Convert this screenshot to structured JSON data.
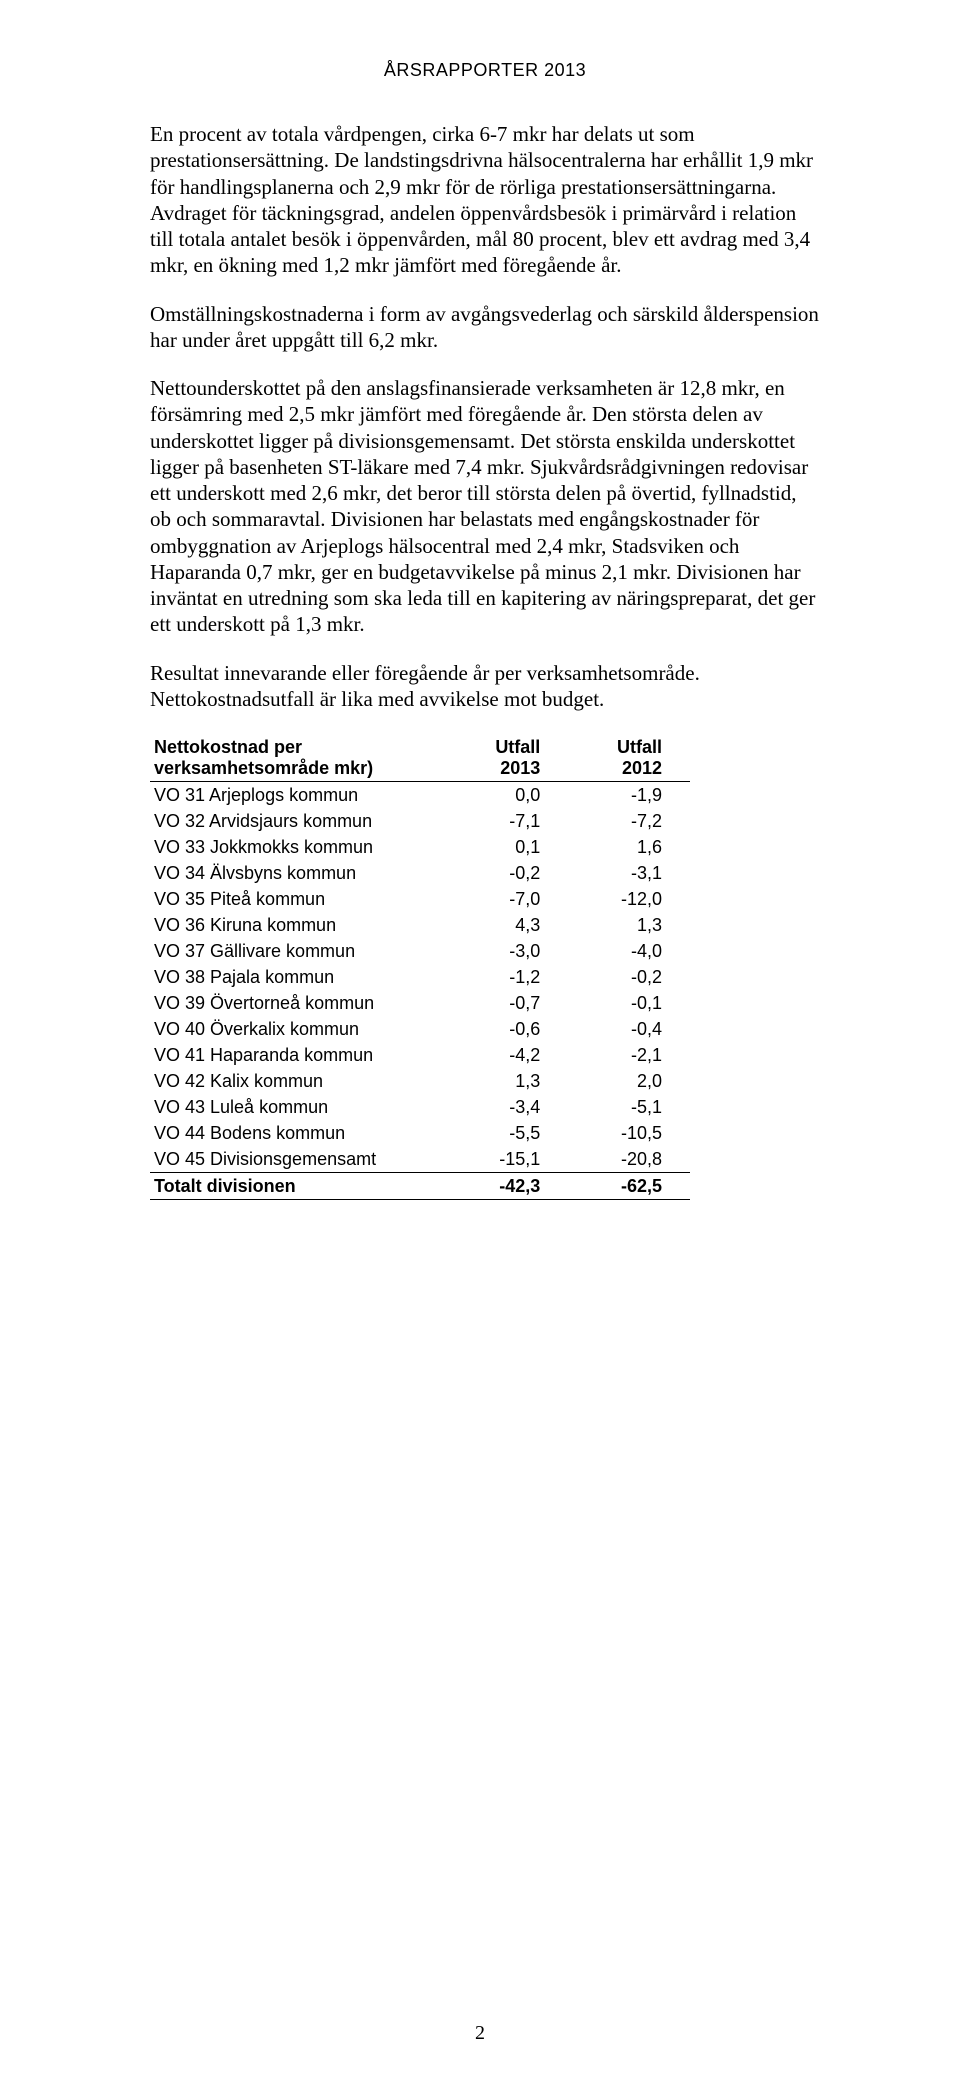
{
  "header": "ÅRSRAPPORTER 2013",
  "paragraphs": [
    "En procent av totala vårdpengen, cirka 6-7 mkr har delats ut som prestationsersättning. De landstingsdrivna hälsocentralerna har erhållit 1,9 mkr för handlingsplanerna och 2,9 mkr för de rörliga prestationsersättningarna. Avdraget för täckningsgrad, andelen öppenvårdsbesök i primärvård i relation till totala antalet besök i öppenvården, mål 80 procent, blev ett avdrag med 3,4 mkr, en ökning med 1,2 mkr jämfört med föregående år.",
    "Omställningskostnaderna i form av avgångsvederlag och särskild ålderspension har under året uppgått till 6,2 mkr.",
    "Nettounderskottet på den anslagsfinansierade verksamheten är 12,8 mkr, en försämring med 2,5 mkr jämfört med föregående år. Den största delen av underskottet ligger på divisionsgemensamt. Det största enskilda underskottet ligger på basenheten ST-läkare med 7,4 mkr. Sjukvårdsrådgivningen redovisar ett underskott med 2,6 mkr, det beror till största delen på övertid, fyllnadstid, ob och sommaravtal. Divisionen har belastats med engångskostnader för ombyggnation av Arjeplogs hälsocentral med 2,4 mkr, Stadsviken och Haparanda 0,7 mkr, ger en budgetavvikelse på minus 2,1 mkr. Divisionen har inväntat en utredning som ska leda till en kapitering av näringspreparat, det ger ett underskott på 1,3 mkr.",
    "Resultat innevarande eller föregående år per verksamhetsområde. Nettokostnadsutfall är lika med avvikelse mot budget."
  ],
  "table": {
    "title_col": "Nettokostnad per verksamhetsområde mkr)",
    "col2_line1": "Utfall",
    "col2_line2": "2013",
    "col3_line1": "Utfall",
    "col3_line2": "2012",
    "rows": [
      {
        "label": "VO 31 Arjeplogs kommun",
        "v2013": "0,0",
        "v2012": "-1,9"
      },
      {
        "label": "VO 32 Arvidsjaurs kommun",
        "v2013": "-7,1",
        "v2012": "-7,2"
      },
      {
        "label": "VO 33 Jokkmokks kommun",
        "v2013": "0,1",
        "v2012": "1,6"
      },
      {
        "label": "VO 34 Älvsbyns kommun",
        "v2013": "-0,2",
        "v2012": "-3,1"
      },
      {
        "label": "VO 35 Piteå kommun",
        "v2013": "-7,0",
        "v2012": "-12,0"
      },
      {
        "label": "VO 36 Kiruna kommun",
        "v2013": "4,3",
        "v2012": "1,3"
      },
      {
        "label": "VO 37 Gällivare kommun",
        "v2013": "-3,0",
        "v2012": "-4,0"
      },
      {
        "label": "VO 38 Pajala kommun",
        "v2013": "-1,2",
        "v2012": "-0,2"
      },
      {
        "label": "VO 39 Övertorneå kommun",
        "v2013": "-0,7",
        "v2012": "-0,1"
      },
      {
        "label": "VO 40 Överkalix kommun",
        "v2013": "-0,6",
        "v2012": "-0,4"
      },
      {
        "label": "VO 41 Haparanda kommun",
        "v2013": "-4,2",
        "v2012": "-2,1"
      },
      {
        "label": "VO 42 Kalix kommun",
        "v2013": "1,3",
        "v2012": "2,0"
      },
      {
        "label": "VO 43 Luleå kommun",
        "v2013": "-3,4",
        "v2012": "-5,1"
      },
      {
        "label": "VO 44 Bodens kommun",
        "v2013": "-5,5",
        "v2012": "-10,5"
      },
      {
        "label": "VO 45 Divisionsgemensamt",
        "v2013": "-15,1",
        "v2012": "-20,8"
      }
    ],
    "totals": {
      "label": "Totalt divisionen",
      "v2013": "-42,3",
      "v2012": "-62,5"
    }
  },
  "page_number": "2"
}
